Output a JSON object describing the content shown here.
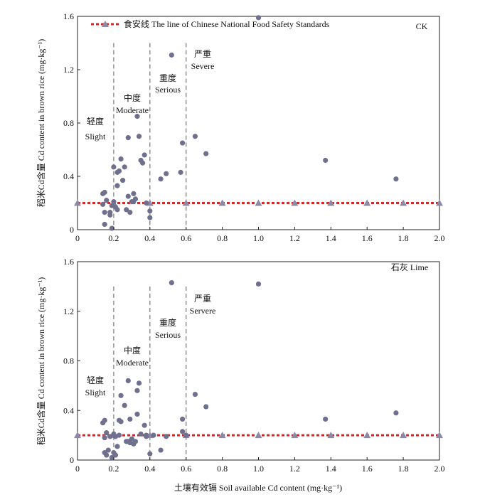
{
  "legend": {
    "label": "食安线 The line of Chinese National Food Safety Standards",
    "color": "#d62728",
    "marker_color": "#8a8aa8"
  },
  "xlabel": "土壤有效镉 Soil available Cd content (mg·kg⁻¹)",
  "point_color": "#6f6f8e",
  "threshold_color": "#d62728",
  "divider_color": "#808080",
  "chart_data": [
    {
      "type": "scatter",
      "title": "CK",
      "ylabel": "稻米Cd含量 Cd content in brown rice (mg·kg⁻¹)",
      "xlim": [
        0,
        2.0
      ],
      "ylim": [
        0,
        1.6
      ],
      "xticks": [
        "0",
        "0.2",
        "0.4",
        "0.6",
        "0.8",
        "1.0",
        "1.2",
        "1.4",
        "1.6",
        "1.8",
        "2.0"
      ],
      "yticks": [
        "0",
        "0.4",
        "0.8",
        "1.2",
        "1.6"
      ],
      "threshold": 0.2,
      "threshold_x": [
        0,
        0.2,
        0.4,
        0.6,
        0.8,
        1.0,
        1.2,
        1.4,
        1.6,
        1.8,
        2.0
      ],
      "dividers": [
        0.2,
        0.4,
        0.6
      ],
      "regions": [
        {
          "zh": "轻度",
          "en": "Slight"
        },
        {
          "zh": "中度",
          "en": "Moderate"
        },
        {
          "zh": "重度",
          "en": "Serious"
        },
        {
          "zh": "严重",
          "en": "Severe"
        }
      ],
      "points": [
        [
          0.14,
          0.27
        ],
        [
          0.15,
          0.28
        ],
        [
          0.16,
          0.22
        ],
        [
          0.14,
          0.19
        ],
        [
          0.15,
          0.13
        ],
        [
          0.15,
          0.04
        ],
        [
          0.18,
          0.13
        ],
        [
          0.19,
          0.01
        ],
        [
          0.18,
          0.11
        ],
        [
          0.19,
          0.18
        ],
        [
          0.2,
          0.21
        ],
        [
          0.2,
          0.47
        ],
        [
          0.21,
          0.17
        ],
        [
          0.22,
          0.15
        ],
        [
          0.22,
          0.33
        ],
        [
          0.22,
          0.43
        ],
        [
          0.23,
          0.44
        ],
        [
          0.24,
          0.53
        ],
        [
          0.25,
          0.37
        ],
        [
          0.26,
          0.47
        ],
        [
          0.27,
          0.15
        ],
        [
          0.28,
          0.25
        ],
        [
          0.28,
          0.69
        ],
        [
          0.29,
          0.13
        ],
        [
          0.3,
          0.21
        ],
        [
          0.31,
          0.27
        ],
        [
          0.31,
          0.21
        ],
        [
          0.32,
          0.23
        ],
        [
          0.33,
          0.85
        ],
        [
          0.34,
          0.7
        ],
        [
          0.35,
          0.52
        ],
        [
          0.36,
          0.5
        ],
        [
          0.37,
          0.56
        ],
        [
          0.38,
          0.2
        ],
        [
          0.4,
          0.09
        ],
        [
          0.4,
          0.14
        ],
        [
          0.46,
          0.38
        ],
        [
          0.49,
          0.42
        ],
        [
          0.52,
          1.31
        ],
        [
          0.57,
          0.43
        ],
        [
          0.58,
          0.65
        ],
        [
          0.65,
          0.7
        ],
        [
          0.71,
          0.57
        ],
        [
          1.0,
          1.59
        ],
        [
          1.37,
          0.52
        ],
        [
          1.76,
          0.38
        ]
      ]
    },
    {
      "type": "scatter",
      "title": "石灰 Lime",
      "ylabel": "稻米Cd含量 Cd content in brown rice (mg·kg⁻¹)",
      "xlim": [
        0,
        2.0
      ],
      "ylim": [
        0,
        1.6
      ],
      "xticks": [
        "0",
        "0.2",
        "0.4",
        "0.6",
        "0.8",
        "1.0",
        "1.2",
        "1.4",
        "1.6",
        "1.8",
        "2.0"
      ],
      "yticks": [
        "0",
        "0.4",
        "0.8",
        "1.2",
        "1.6"
      ],
      "threshold": 0.2,
      "threshold_x": [
        0,
        0.2,
        0.4,
        0.6,
        0.8,
        1.0,
        1.2,
        1.4,
        1.6,
        1.8,
        2.0
      ],
      "dividers": [
        0.2,
        0.4,
        0.6
      ],
      "regions": [
        {
          "zh": "轻度",
          "en": "Slight"
        },
        {
          "zh": "中度",
          "en": "Moderate"
        },
        {
          "zh": "重度",
          "en": "Serious"
        },
        {
          "zh": "严重",
          "en": "Servere"
        }
      ],
      "points": [
        [
          0.14,
          0.3
        ],
        [
          0.15,
          0.32
        ],
        [
          0.15,
          0.18
        ],
        [
          0.16,
          0.22
        ],
        [
          0.15,
          0.06
        ],
        [
          0.16,
          0.04
        ],
        [
          0.17,
          0.08
        ],
        [
          0.18,
          0.19
        ],
        [
          0.19,
          0.02
        ],
        [
          0.2,
          0.06
        ],
        [
          0.2,
          0.21
        ],
        [
          0.21,
          0.19
        ],
        [
          0.21,
          0.04
        ],
        [
          0.22,
          0.11
        ],
        [
          0.23,
          0.2
        ],
        [
          0.23,
          0.32
        ],
        [
          0.24,
          0.31
        ],
        [
          0.24,
          0.52
        ],
        [
          0.26,
          0.44
        ],
        [
          0.27,
          0.15
        ],
        [
          0.28,
          0.15
        ],
        [
          0.28,
          0.64
        ],
        [
          0.29,
          0.33
        ],
        [
          0.29,
          0.14
        ],
        [
          0.3,
          0.17
        ],
        [
          0.31,
          0.13
        ],
        [
          0.32,
          0.15
        ],
        [
          0.33,
          0.56
        ],
        [
          0.33,
          0.37
        ],
        [
          0.34,
          0.62
        ],
        [
          0.35,
          0.21
        ],
        [
          0.37,
          0.28
        ],
        [
          0.38,
          0.2
        ],
        [
          0.38,
          0.19
        ],
        [
          0.4,
          0.05
        ],
        [
          0.42,
          0.2
        ],
        [
          0.46,
          0.08
        ],
        [
          0.49,
          0.19
        ],
        [
          0.52,
          1.43
        ],
        [
          0.58,
          0.33
        ],
        [
          0.58,
          0.23
        ],
        [
          0.6,
          0.2
        ],
        [
          0.65,
          0.53
        ],
        [
          0.71,
          0.43
        ],
        [
          1.0,
          1.42
        ],
        [
          1.37,
          0.33
        ],
        [
          1.76,
          0.38
        ]
      ]
    }
  ]
}
